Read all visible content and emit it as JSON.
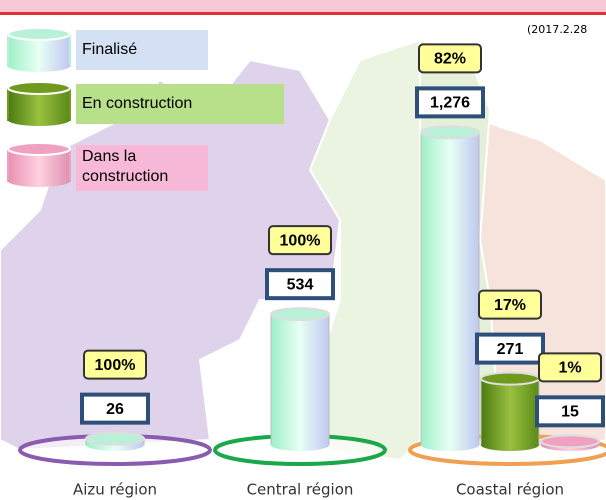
{
  "chart_data": {
    "type": "bar",
    "date_note": "(2017.2.28",
    "categories": [
      "Aizu région",
      "Central région",
      "Coastal région"
    ],
    "series": [
      {
        "name": "Finalisé",
        "color": "#b8f0d8",
        "values": [
          26,
          534,
          1276
        ],
        "value_labels": [
          "26",
          "534",
          "1,276"
        ],
        "percent_labels": [
          "100%",
          "100%",
          "82%"
        ]
      },
      {
        "name": "En construction",
        "color": "#6f9a1e",
        "values": [
          null,
          null,
          271
        ],
        "value_labels": [
          null,
          null,
          "271"
        ],
        "percent_labels": [
          null,
          null,
          "17%"
        ]
      },
      {
        "name": "Dans la construction",
        "color": "#f0a0c0",
        "values": [
          null,
          null,
          15
        ],
        "value_labels": [
          null,
          null,
          "15"
        ],
        "percent_labels": [
          null,
          null,
          "1%"
        ]
      }
    ],
    "region_colors": [
      "#8a5cb0",
      "#1aa84a",
      "#f0a050"
    ]
  }
}
